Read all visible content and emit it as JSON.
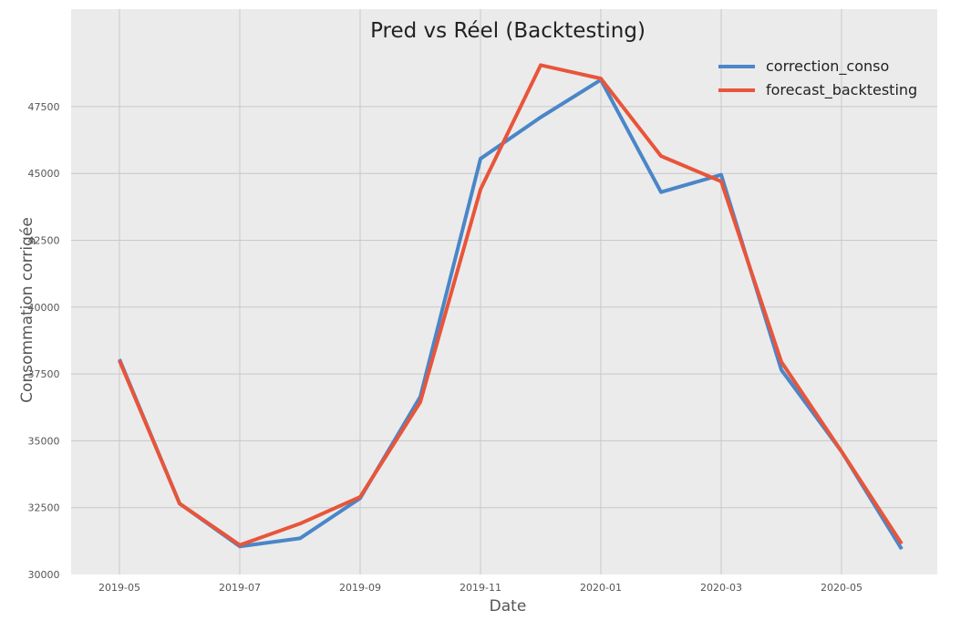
{
  "chart_data": {
    "type": "line",
    "title": "Pred vs Réel (Backtesting)",
    "xlabel": "Date",
    "ylabel": "Consommation corrigée",
    "x": [
      "2019-05",
      "2019-06",
      "2019-07",
      "2019-08",
      "2019-09",
      "2019-10",
      "2019-11",
      "2019-12",
      "2020-01",
      "2020-02",
      "2020-03",
      "2020-04",
      "2020-05",
      "2020-06"
    ],
    "x_ticks": [
      "2019-05",
      "2019-07",
      "2019-09",
      "2019-11",
      "2020-01",
      "2020-03",
      "2020-05"
    ],
    "ylim": [
      30000,
      50000
    ],
    "y_ticks": [
      30000,
      32500,
      35000,
      37500,
      40000,
      42500,
      45000,
      47500
    ],
    "grid": true,
    "legend_position": "top-right",
    "background": "#ebebeb",
    "grid_color": "#c8c8c8",
    "series": [
      {
        "name": "correction_conso",
        "color": "#4a86c8",
        "values": [
          38050,
          32650,
          31050,
          31350,
          32850,
          36650,
          45550,
          47100,
          48500,
          44300,
          44950,
          37650,
          34600,
          30950
        ]
      },
      {
        "name": "forecast_backtesting",
        "color": "#e8553a",
        "values": [
          38000,
          32650,
          31100,
          31900,
          32900,
          36450,
          44400,
          49050,
          48550,
          45650,
          44700,
          37950,
          34600,
          31150
        ]
      }
    ]
  }
}
